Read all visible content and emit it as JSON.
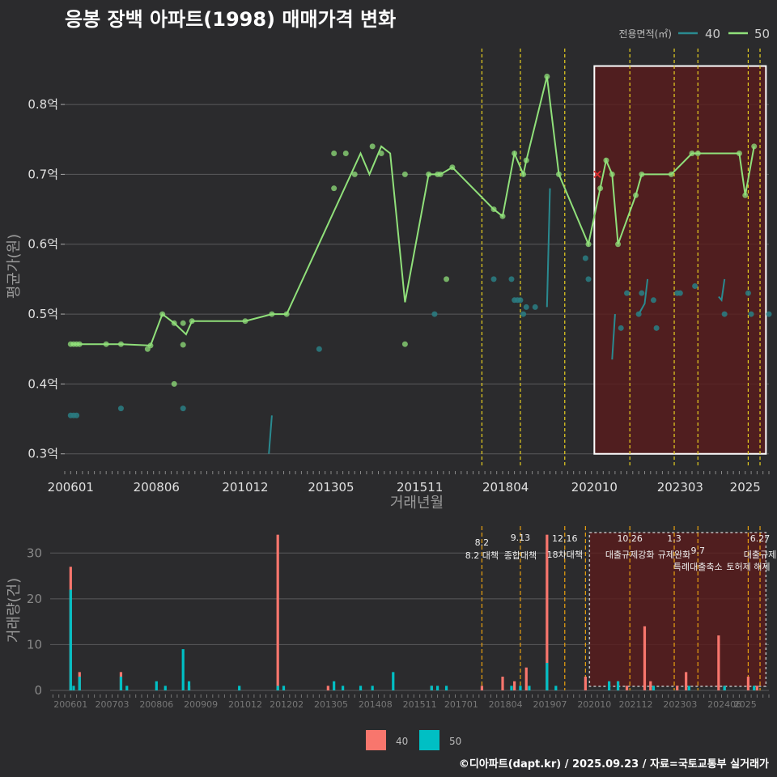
{
  "title": "응봉 장백 아파트(1998) 매매가격 변화",
  "footer": "©디아파트(dapt.kr) / 2025.09.23 / 자료=국토교통부 실거래가",
  "colors": {
    "background": "#2b2b2d",
    "series40_line": "#2a8a90",
    "series40_point": "#2a7a80",
    "series50": "#90e07a",
    "bar40": "#f8766d",
    "bar50": "#00bfc4",
    "event_line": "#e8d020",
    "band_fill": "#5a1c1c"
  },
  "chart_data": [
    {
      "type": "line",
      "title": "응봉 장백 아파트(1998) 매매가격 변화",
      "xlabel": "거래년월",
      "ylabel": "평균가(원)",
      "legend_title": "전용면적(㎡)",
      "legend_placement": "top-right",
      "ylim": [
        0.28,
        0.88
      ],
      "xlim": [
        "2005-11",
        "2025-09"
      ],
      "y_ticks": [
        "0.3억",
        "0.4억",
        "0.5억",
        "0.6억",
        "0.7억",
        "0.8억"
      ],
      "x_ticks": [
        "200601",
        "200806",
        "201012",
        "201305",
        "201511",
        "201804",
        "202010",
        "202303",
        "2025"
      ],
      "event_lines": [
        "2017-08",
        "2018-09",
        "2019-12",
        "2021-10",
        "2023-01",
        "2023-09",
        "2025-02",
        "2025-06"
      ],
      "highlight_box": [
        "2020-10",
        "2025-08"
      ],
      "series": [
        {
          "name": "40",
          "line_segments": [
            [
              [
                "2011-08",
                0.3
              ],
              [
                "2011-09",
                0.355
              ]
            ],
            [
              [
                "2019-06",
                0.51
              ],
              [
                "2019-07",
                0.68
              ]
            ],
            [
              [
                "2021-04",
                0.435
              ],
              [
                "2021-05",
                0.5
              ]
            ],
            [
              [
                "2022-01",
                0.5
              ],
              [
                "2022-03",
                0.515
              ],
              [
                "2022-04",
                0.55
              ]
            ],
            [
              [
                "2024-04",
                0.525
              ],
              [
                "2024-05",
                0.52
              ],
              [
                "2024-06",
                0.55
              ]
            ]
          ],
          "points": [
            [
              "2006-01",
              0.355
            ],
            [
              "2006-02",
              0.355
            ],
            [
              "2006-03",
              0.355
            ],
            [
              "2007-06",
              0.365
            ],
            [
              "2009-03",
              0.365
            ],
            [
              "2013-01",
              0.45
            ],
            [
              "2016-04",
              0.5
            ],
            [
              "2017-12",
              0.55
            ],
            [
              "2018-06",
              0.55
            ],
            [
              "2018-07",
              0.52
            ],
            [
              "2018-08",
              0.52
            ],
            [
              "2018-09",
              0.52
            ],
            [
              "2018-10",
              0.5
            ],
            [
              "2018-11",
              0.51
            ],
            [
              "2019-02",
              0.51
            ],
            [
              "2020-07",
              0.58
            ],
            [
              "2020-08",
              0.55
            ],
            [
              "2021-07",
              0.48
            ],
            [
              "2021-09",
              0.53
            ],
            [
              "2022-01",
              0.5
            ],
            [
              "2022-02",
              0.53
            ],
            [
              "2022-06",
              0.52
            ],
            [
              "2022-07",
              0.48
            ],
            [
              "2023-02",
              0.53
            ],
            [
              "2023-03",
              0.53
            ],
            [
              "2023-08",
              0.54
            ],
            [
              "2024-06",
              0.5
            ],
            [
              "2025-02",
              0.53
            ],
            [
              "2025-03",
              0.5
            ],
            [
              "2025-09",
              0.5
            ]
          ]
        },
        {
          "name": "50",
          "line": [
            [
              "2006-01",
              0.457
            ],
            [
              "2006-04",
              0.457
            ],
            [
              "2006-06",
              0.457
            ],
            [
              "2007-01",
              0.457
            ],
            [
              "2007-03",
              0.457
            ],
            [
              "2007-06",
              0.457
            ],
            [
              "2008-04",
              0.455
            ],
            [
              "2008-08",
              0.5
            ],
            [
              "2008-12",
              0.487
            ],
            [
              "2009-04",
              0.471
            ],
            [
              "2009-06",
              0.49
            ],
            [
              "2010-12",
              0.49
            ],
            [
              "2011-09",
              0.5
            ],
            [
              "2012-02",
              0.5
            ],
            [
              "2014-03",
              0.73
            ],
            [
              "2014-06",
              0.7
            ],
            [
              "2014-10",
              0.74
            ],
            [
              "2015-01",
              0.73
            ],
            [
              "2015-06",
              0.517
            ],
            [
              "2016-02",
              0.7
            ],
            [
              "2016-05",
              0.7
            ],
            [
              "2016-06",
              0.7
            ],
            [
              "2016-10",
              0.71
            ],
            [
              "2017-12",
              0.65
            ],
            [
              "2018-03",
              0.64
            ],
            [
              "2018-07",
              0.73
            ],
            [
              "2018-10",
              0.7
            ],
            [
              "2018-11",
              0.72
            ],
            [
              "2019-06",
              0.84
            ],
            [
              "2019-10",
              0.7
            ],
            [
              "2020-08",
              0.6
            ],
            [
              "2020-12",
              0.68
            ],
            [
              "2021-02",
              0.72
            ],
            [
              "2021-04",
              0.7
            ],
            [
              "2021-06",
              0.6
            ],
            [
              "2021-12",
              0.67
            ],
            [
              "2022-02",
              0.7
            ],
            [
              "2022-12",
              0.7
            ],
            [
              "2023-07",
              0.73
            ],
            [
              "2023-09",
              0.73
            ],
            [
              "2024-11",
              0.73
            ],
            [
              "2025-01",
              0.67
            ],
            [
              "2025-04",
              0.74
            ]
          ],
          "points": [
            [
              "2006-01",
              0.457
            ],
            [
              "2006-02",
              0.457
            ],
            [
              "2006-03",
              0.457
            ],
            [
              "2006-04",
              0.457
            ],
            [
              "2007-01",
              0.457
            ],
            [
              "2007-06",
              0.457
            ],
            [
              "2008-03",
              0.45
            ],
            [
              "2008-04",
              0.455
            ],
            [
              "2008-08",
              0.5
            ],
            [
              "2008-12",
              0.487
            ],
            [
              "2008-12",
              0.4
            ],
            [
              "2009-03",
              0.456
            ],
            [
              "2009-03",
              0.487
            ],
            [
              "2009-06",
              0.49
            ],
            [
              "2010-12",
              0.49
            ],
            [
              "2011-09",
              0.5
            ],
            [
              "2012-02",
              0.5
            ],
            [
              "2013-06",
              0.68
            ],
            [
              "2013-06",
              0.73
            ],
            [
              "2013-10",
              0.73
            ],
            [
              "2014-01",
              0.7
            ],
            [
              "2014-07",
              0.74
            ],
            [
              "2014-10",
              0.73
            ],
            [
              "2015-06",
              0.457
            ],
            [
              "2015-06",
              0.7
            ],
            [
              "2016-02",
              0.7
            ],
            [
              "2016-05",
              0.7
            ],
            [
              "2016-06",
              0.7
            ],
            [
              "2016-08",
              0.55
            ],
            [
              "2016-10",
              0.71
            ],
            [
              "2017-12",
              0.65
            ],
            [
              "2018-03",
              0.64
            ],
            [
              "2018-07",
              0.73
            ],
            [
              "2018-10",
              0.7
            ],
            [
              "2018-11",
              0.72
            ],
            [
              "2019-06",
              0.84
            ],
            [
              "2019-10",
              0.7
            ],
            [
              "2020-08",
              0.6
            ],
            [
              "2020-12",
              0.68
            ],
            [
              "2021-02",
              0.72
            ],
            [
              "2021-04",
              0.7
            ],
            [
              "2021-06",
              0.6
            ],
            [
              "2021-12",
              0.67
            ],
            [
              "2022-02",
              0.7
            ],
            [
              "2022-12",
              0.7
            ],
            [
              "2023-07",
              0.73
            ],
            [
              "2023-09",
              0.73
            ],
            [
              "2024-11",
              0.73
            ],
            [
              "2025-01",
              0.67
            ],
            [
              "2025-04",
              0.74
            ]
          ]
        }
      ],
      "markers": [
        {
          "x": "2020-11",
          "y": 0.7,
          "shape": "x",
          "color": "#e03030"
        }
      ]
    },
    {
      "type": "bar",
      "xlabel": "",
      "ylabel": "거래량(건)",
      "ylim": [
        0,
        35
      ],
      "y_ticks": [
        "0",
        "10",
        "20",
        "30"
      ],
      "x_ticks": [
        "200601",
        "200703",
        "200806",
        "200909",
        "201012",
        "201202",
        "201305",
        "201408",
        "201511",
        "201701",
        "201804",
        "201907",
        "202010",
        "202112",
        "202303",
        "202406",
        "2025"
      ],
      "legend_placement": "bottom",
      "event_lines": [
        "2017-08",
        "2018-09",
        "2019-12",
        "2020-07",
        "2021-10",
        "2023-01",
        "2023-09",
        "2025-02",
        "2025-06"
      ],
      "highlight_box": [
        "2020-10",
        "2025-08"
      ],
      "annotations": [
        {
          "x": "2017-08",
          "date": "8.2",
          "text": "8.2 대책"
        },
        {
          "x": "2018-09",
          "date": "9.13",
          "text": "종합대책"
        },
        {
          "x": "2019-12",
          "date": "12.16",
          "text": "18차대책"
        },
        {
          "x": "2021-10",
          "date": "10.26",
          "text": "대출규제강화"
        },
        {
          "x": "2023-01",
          "date": "1.3",
          "text": "규제완화"
        },
        {
          "x": "2023-09",
          "date": "9.7",
          "text": "특례대출축소"
        },
        {
          "x": "2025-02",
          "date": "",
          "text": "토허제 해제"
        },
        {
          "x": "2025-06",
          "date": "6.27",
          "text": "대출규제"
        }
      ],
      "series": [
        {
          "name": "40",
          "bars": [
            [
              "2006-01",
              27
            ],
            [
              "2006-04",
              4
            ],
            [
              "2007-06",
              4
            ],
            [
              "2009-05",
              1
            ],
            [
              "2011-11",
              34
            ],
            [
              "2013-04",
              1
            ],
            [
              "2016-03",
              1
            ],
            [
              "2017-08",
              1
            ],
            [
              "2018-03",
              3
            ],
            [
              "2018-07",
              2
            ],
            [
              "2018-11",
              5
            ],
            [
              "2019-06",
              34
            ],
            [
              "2020-07",
              3
            ],
            [
              "2021-06",
              2
            ],
            [
              "2021-09",
              1
            ],
            [
              "2022-03",
              14
            ],
            [
              "2022-05",
              2
            ],
            [
              "2023-02",
              1
            ],
            [
              "2023-05",
              4
            ],
            [
              "2024-04",
              12
            ],
            [
              "2024-06",
              1
            ],
            [
              "2025-02",
              3
            ],
            [
              "2025-05",
              1
            ]
          ]
        },
        {
          "name": "50",
          "bars": [
            [
              "2006-01",
              22
            ],
            [
              "2006-02",
              1
            ],
            [
              "2006-04",
              3
            ],
            [
              "2007-06",
              3
            ],
            [
              "2007-08",
              1
            ],
            [
              "2008-06",
              2
            ],
            [
              "2008-09",
              1
            ],
            [
              "2009-03",
              9
            ],
            [
              "2009-05",
              2
            ],
            [
              "2010-10",
              1
            ],
            [
              "2011-11",
              1
            ],
            [
              "2012-01",
              1
            ],
            [
              "2013-06",
              2
            ],
            [
              "2013-09",
              1
            ],
            [
              "2014-03",
              1
            ],
            [
              "2014-07",
              1
            ],
            [
              "2015-02",
              4
            ],
            [
              "2016-03",
              1
            ],
            [
              "2016-05",
              1
            ],
            [
              "2016-08",
              1
            ],
            [
              "2018-06",
              1
            ],
            [
              "2018-09",
              1
            ],
            [
              "2018-12",
              1
            ],
            [
              "2019-06",
              6
            ],
            [
              "2019-09",
              1
            ],
            [
              "2021-03",
              2
            ],
            [
              "2021-06",
              2
            ],
            [
              "2022-06",
              1
            ],
            [
              "2023-06",
              1
            ],
            [
              "2024-06",
              1
            ],
            [
              "2025-04",
              1
            ]
          ]
        }
      ]
    }
  ]
}
